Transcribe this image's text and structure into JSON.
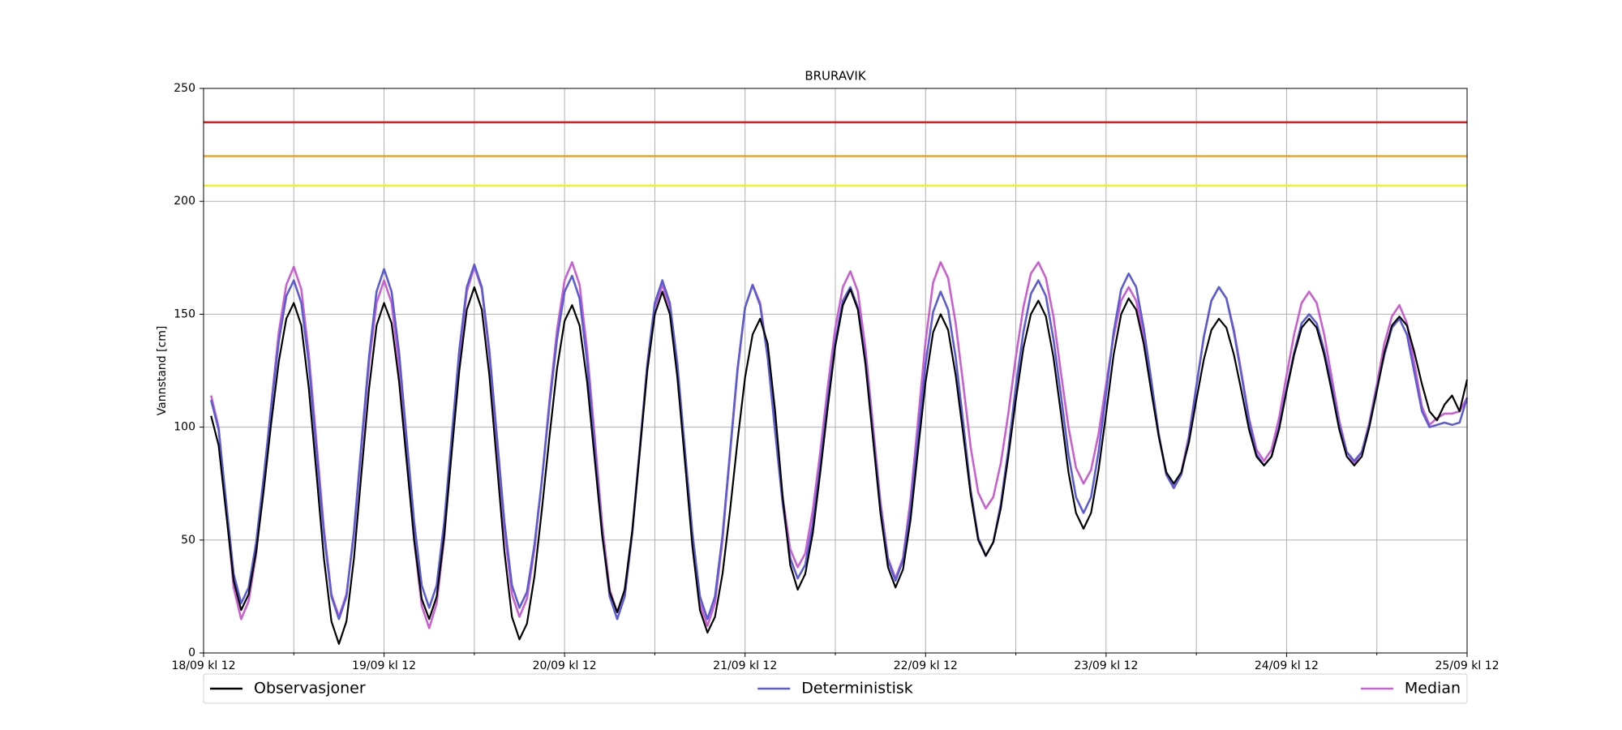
{
  "chart_data": {
    "type": "line",
    "title": "BRURAVIK",
    "y_label": "Vannstand [cm]",
    "xlim": [
      0,
      168
    ],
    "xticks": [
      {
        "value": 0,
        "label": "18/09 kl 12"
      },
      {
        "value": 24,
        "label": "19/09 kl 12"
      },
      {
        "value": 48,
        "label": "20/09 kl 12"
      },
      {
        "value": 72,
        "label": "21/09 kl 12"
      },
      {
        "value": 96,
        "label": "22/09 kl 12"
      },
      {
        "value": 120,
        "label": "23/09 kl 12"
      },
      {
        "value": 144,
        "label": "24/09 kl 12"
      },
      {
        "value": 168,
        "label": "25/09 kl 12"
      }
    ],
    "xminorticks": [
      12,
      36,
      60,
      84,
      108,
      132,
      156
    ],
    "ylim": [
      0,
      250
    ],
    "yticks": [
      0,
      50,
      100,
      150,
      200,
      250
    ],
    "grid": true,
    "thresholds": [
      {
        "value": 235,
        "color": "#e31a1c"
      },
      {
        "value": 220,
        "color": "#f5a020"
      },
      {
        "value": 207,
        "color": "#f2f22a"
      }
    ],
    "x": [
      1,
      2,
      3,
      4,
      5,
      6,
      7,
      8,
      9,
      10,
      11,
      12,
      13,
      14,
      15,
      16,
      17,
      18,
      19,
      20,
      21,
      22,
      23,
      24,
      25,
      26,
      27,
      28,
      29,
      30,
      31,
      32,
      33,
      34,
      35,
      36,
      37,
      38,
      39,
      40,
      41,
      42,
      43,
      44,
      45,
      46,
      47,
      48,
      49,
      50,
      51,
      52,
      53,
      54,
      55,
      56,
      57,
      58,
      59,
      60,
      61,
      62,
      63,
      64,
      65,
      66,
      67,
      68,
      69,
      70,
      71,
      72,
      73,
      74,
      75,
      76,
      77,
      78,
      79,
      80,
      81,
      82,
      83,
      84,
      85,
      86,
      87,
      88,
      89,
      90,
      91,
      92,
      93,
      94,
      95,
      96,
      97,
      98,
      99,
      100,
      101,
      102,
      103,
      104,
      105,
      106,
      107,
      108,
      109,
      110,
      111,
      112,
      113,
      114,
      115,
      116,
      117,
      118,
      119,
      120,
      121,
      122,
      123,
      124,
      125,
      126,
      127,
      128,
      129,
      130,
      131,
      132,
      133,
      134,
      135,
      136,
      137,
      138,
      139,
      140,
      141,
      142,
      143,
      144,
      145,
      146,
      147,
      148,
      149,
      150,
      151,
      152,
      153,
      154,
      155,
      156,
      157,
      158,
      159,
      160,
      161,
      162,
      163,
      164,
      165,
      166,
      167,
      168
    ],
    "series": [
      {
        "name": "Observasjoner",
        "color": "#000000",
        "values": [
          105,
          92,
          62,
          32,
          19,
          26,
          45,
          72,
          102,
          129,
          148,
          155,
          145,
          117,
          80,
          42,
          14,
          4,
          14,
          42,
          80,
          117,
          145,
          155,
          146,
          120,
          85,
          50,
          24,
          15,
          25,
          52,
          89,
          125,
          152,
          162,
          152,
          123,
          84,
          45,
          16,
          6,
          13,
          34,
          64,
          96,
          126,
          147,
          154,
          145,
          120,
          86,
          52,
          27,
          18,
          28,
          54,
          89,
          125,
          150,
          160,
          150,
          122,
          85,
          47,
          19,
          9,
          16,
          35,
          63,
          94,
          122,
          141,
          148,
          137,
          107,
          69,
          39,
          28,
          35,
          53,
          80,
          109,
          136,
          154,
          161,
          152,
          128,
          95,
          62,
          38,
          29,
          37,
          59,
          90,
          120,
          142,
          150,
          143,
          123,
          97,
          70,
          50,
          43,
          49,
          64,
          87,
          112,
          135,
          150,
          156,
          149,
          131,
          106,
          80,
          62,
          55,
          62,
          81,
          106,
          132,
          150,
          157,
          152,
          137,
          116,
          96,
          80,
          75,
          80,
          93,
          112,
          130,
          143,
          148,
          144,
          132,
          116,
          99,
          87,
          83,
          87,
          99,
          116,
          132,
          144,
          148,
          144,
          132,
          116,
          99,
          87,
          83,
          87,
          100,
          116,
          133,
          145,
          149,
          145,
          133,
          119,
          107,
          103,
          110,
          114,
          107,
          121
        ]
      },
      {
        "name": "Deterministisk",
        "color": "#5c5cd2",
        "values": [
          112,
          99,
          67,
          35,
          22,
          29,
          49,
          78,
          109,
          138,
          158,
          165,
          155,
          128,
          90,
          53,
          25,
          15,
          25,
          54,
          93,
          131,
          160,
          170,
          160,
          133,
          95,
          58,
          30,
          20,
          30,
          58,
          96,
          134,
          162,
          172,
          162,
          134,
          96,
          58,
          30,
          20,
          27,
          48,
          77,
          110,
          139,
          160,
          167,
          157,
          129,
          91,
          53,
          25,
          15,
          25,
          53,
          90,
          128,
          155,
          165,
          155,
          128,
          90,
          53,
          25,
          15,
          25,
          52,
          89,
          126,
          153,
          163,
          154,
          131,
          98,
          66,
          42,
          33,
          39,
          57,
          83,
          112,
          138,
          156,
          162,
          153,
          130,
          97,
          65,
          41,
          32,
          41,
          64,
          96,
          128,
          151,
          160,
          152,
          131,
          102,
          72,
          51,
          43,
          49,
          66,
          90,
          118,
          142,
          159,
          165,
          158,
          139,
          114,
          88,
          69,
          62,
          69,
          89,
          115,
          142,
          161,
          168,
          162,
          144,
          121,
          97,
          79,
          73,
          79,
          95,
          118,
          140,
          156,
          162,
          157,
          142,
          123,
          103,
          88,
          83,
          87,
          100,
          117,
          133,
          146,
          150,
          146,
          134,
          118,
          101,
          89,
          85,
          89,
          101,
          117,
          132,
          144,
          148,
          141,
          124,
          107,
          100,
          101,
          102,
          101,
          102,
          113
        ]
      },
      {
        "name": "Median",
        "color": "#c95fd0",
        "values": [
          114,
          100,
          65,
          29,
          15,
          23,
          44,
          76,
          110,
          142,
          163,
          171,
          161,
          132,
          94,
          55,
          26,
          16,
          26,
          53,
          91,
          128,
          155,
          165,
          155,
          127,
          88,
          50,
          21,
          11,
          22,
          51,
          91,
          131,
          160,
          171,
          161,
          132,
          94,
          55,
          26,
          16,
          24,
          46,
          77,
          112,
          143,
          165,
          173,
          163,
          134,
          96,
          57,
          28,
          18,
          28,
          54,
          91,
          127,
          153,
          163,
          153,
          125,
          88,
          50,
          22,
          12,
          22,
          50,
          88,
          125,
          153,
          163,
          155,
          132,
          101,
          69,
          46,
          38,
          44,
          63,
          89,
          118,
          144,
          162,
          169,
          160,
          135,
          101,
          67,
          42,
          33,
          42,
          68,
          103,
          138,
          164,
          173,
          166,
          146,
          119,
          91,
          71,
          64,
          69,
          84,
          106,
          131,
          153,
          168,
          173,
          166,
          149,
          124,
          100,
          82,
          75,
          81,
          97,
          119,
          140,
          156,
          162,
          156,
          140,
          118,
          96,
          80,
          74,
          80,
          96,
          118,
          140,
          156,
          162,
          157,
          143,
          124,
          104,
          90,
          85,
          90,
          104,
          123,
          141,
          155,
          160,
          155,
          141,
          122,
          103,
          89,
          84,
          89,
          102,
          119,
          137,
          149,
          154,
          146,
          128,
          109,
          101,
          104,
          106,
          106,
          107,
          113
        ]
      }
    ]
  }
}
